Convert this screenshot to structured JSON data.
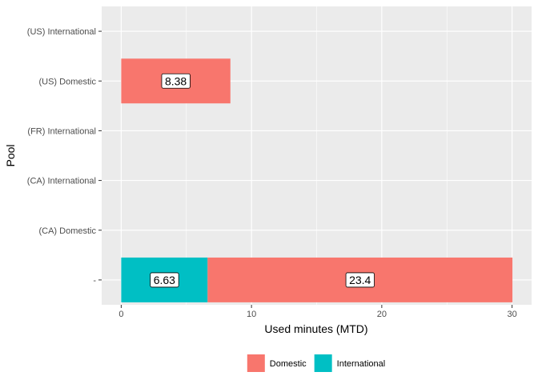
{
  "chart_data": {
    "type": "bar",
    "orientation": "horizontal",
    "stacked": true,
    "categories": [
      "",
      "(CA) Domestic",
      "(CA) International",
      "(FR) International",
      "(US) Domestic",
      "(US) International"
    ],
    "series": [
      {
        "name": "International",
        "color": "#00BFC4",
        "values": [
          6.63,
          0,
          0,
          0,
          0,
          0
        ]
      },
      {
        "name": "Domestic",
        "color": "#F8766D",
        "values": [
          23.4,
          0,
          0,
          0,
          8.38,
          0
        ]
      }
    ],
    "data_labels": [
      {
        "category": "",
        "series": "International",
        "text": "6.63"
      },
      {
        "category": "",
        "series": "Domestic",
        "text": "23.4"
      },
      {
        "category": "(US) Domestic",
        "series": "Domestic",
        "text": "8.38"
      }
    ],
    "category_labels": [
      "-",
      "(CA) Domestic",
      "(CA) International",
      "(FR) International",
      "(US) Domestic",
      "(US) International"
    ],
    "xlabel": "Used minutes (MTD)",
    "ylabel": "Pool",
    "xlim": [
      -1.5,
      31.5
    ],
    "x_ticks": [
      0,
      10,
      20,
      30
    ],
    "x_tick_labels": [
      "0",
      "10",
      "20",
      "30"
    ],
    "grid": true,
    "panel_background": "#EBEBEB",
    "legend": {
      "position": "bottom",
      "items": [
        {
          "label": "Domestic",
          "color": "#F8766D"
        },
        {
          "label": "International",
          "color": "#00BFC4"
        }
      ]
    }
  }
}
